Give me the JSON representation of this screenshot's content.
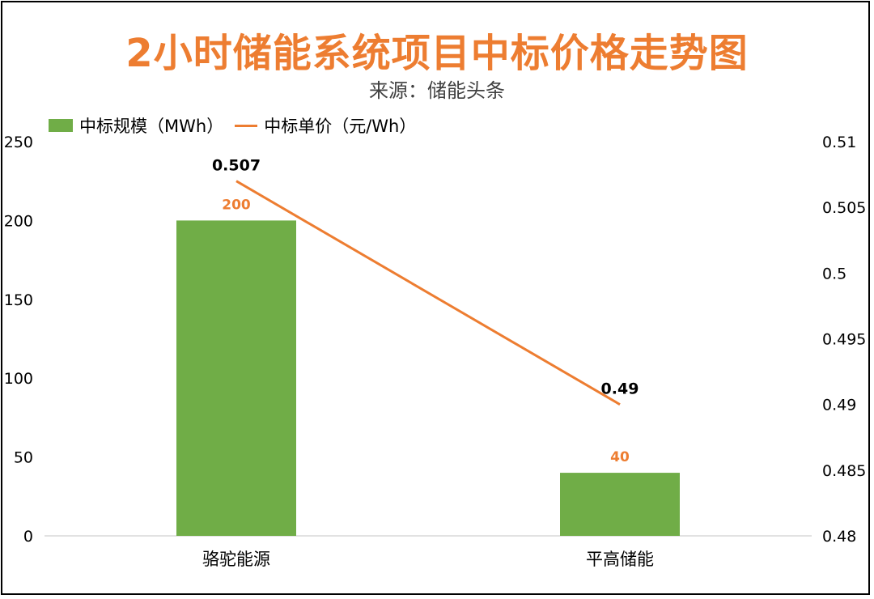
{
  "chart_data": {
    "type": "bar",
    "title": "2小时储能系统项目中标价格走势图",
    "subtitle": "来源：储能头条",
    "categories": [
      "骆驼能源",
      "平高储能"
    ],
    "series": [
      {
        "name": "中标规模（MWh）",
        "type": "bar",
        "axis": "left",
        "values": [
          200,
          40
        ],
        "color": "#70AD47",
        "label_color": "#ED7D31"
      },
      {
        "name": "中标单价（元/Wh）",
        "type": "line",
        "axis": "right",
        "values": [
          0.507,
          0.49
        ],
        "color": "#ED7D31",
        "label_color": "#000000"
      }
    ],
    "left_axis": {
      "ylim": [
        0,
        250
      ],
      "ticks": [
        "0",
        "50",
        "100",
        "150",
        "200",
        "250"
      ]
    },
    "right_axis": {
      "ylim": [
        0.48,
        0.51
      ],
      "ticks": [
        "0.48",
        "0.485",
        "0.49",
        "0.495",
        "0.5",
        "0.505",
        "0.51"
      ]
    },
    "bar_labels": [
      "200",
      "40"
    ],
    "line_labels": [
      "0.507",
      "0.49"
    ],
    "legend": "top-left",
    "grid": false
  }
}
